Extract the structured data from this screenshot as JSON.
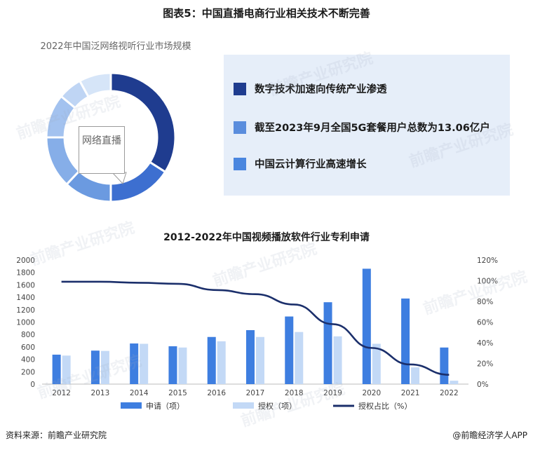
{
  "figure_title": "图表5：中国直播电商行业相关技术不断完善",
  "donut": {
    "title": "2022年中国泛网络视听行业市场规模",
    "callout": "网络直播",
    "chart_data": {
      "type": "pie",
      "title": "2022年中国泛网络视听行业市场规模",
      "segments": [
        {
          "label": "网络直播",
          "value": 34,
          "color": "#1f3c8f"
        },
        {
          "label": "",
          "value": 16,
          "color": "#3d6fd0"
        },
        {
          "label": "",
          "value": 12,
          "color": "#6b9ae0"
        },
        {
          "label": "",
          "value": 13,
          "color": "#86aee8"
        },
        {
          "label": "",
          "value": 11,
          "color": "#a3c2ef"
        },
        {
          "label": "",
          "value": 6,
          "color": "#bfd5f4"
        },
        {
          "label": "",
          "value": 8,
          "color": "#d6e5f8"
        }
      ]
    }
  },
  "legend_panel": {
    "items": [
      {
        "text": "数字技术加速向传统产业渗透",
        "color": "#1f3c8f"
      },
      {
        "text": "截至2023年9月全国5G套餐用户总数为13.06亿户",
        "color": "#5a8ddd"
      },
      {
        "text": "中国云计算行业高速增长",
        "color": "#4a86df"
      }
    ]
  },
  "chart_data": {
    "type": "bar",
    "title": "2012-2022年中国视频播放软件行业专利申请",
    "categories": [
      "2012",
      "2013",
      "2014",
      "2015",
      "2016",
      "2017",
      "2018",
      "2019",
      "2020",
      "2021",
      "2022"
    ],
    "series": [
      {
        "name": "申请（项）",
        "type": "bar",
        "axis": "left",
        "color": "#3e7ee0",
        "values": [
          475,
          540,
          655,
          610,
          760,
          870,
          1090,
          1320,
          1860,
          1380,
          590
        ]
      },
      {
        "name": "授权（项）",
        "type": "bar",
        "axis": "left",
        "color": "#c3d9f6",
        "values": [
          460,
          535,
          650,
          590,
          690,
          760,
          840,
          770,
          650,
          270,
          55
        ]
      },
      {
        "name": "授权占比（%）",
        "type": "line",
        "axis": "right",
        "color": "#1b2f6b",
        "values": [
          99,
          99,
          98,
          97,
          91,
          87,
          77,
          58,
          35,
          19,
          9
        ]
      }
    ],
    "y_left": {
      "min": 0,
      "max": 2000,
      "ticks": [
        "0",
        "200",
        "400",
        "600",
        "800",
        "1000",
        "1200",
        "1400",
        "1600",
        "1800",
        "2000"
      ]
    },
    "y_right": {
      "min": 0,
      "max": 120,
      "ticks": [
        "0%",
        "20%",
        "40%",
        "60%",
        "80%",
        "100%",
        "120%"
      ]
    },
    "legend_position": "bottom"
  },
  "footer": {
    "source": "资料来源：前瞻产业研究院",
    "credit": "@前瞻经济学人APP"
  },
  "watermark_text": "前瞻产业研究院"
}
